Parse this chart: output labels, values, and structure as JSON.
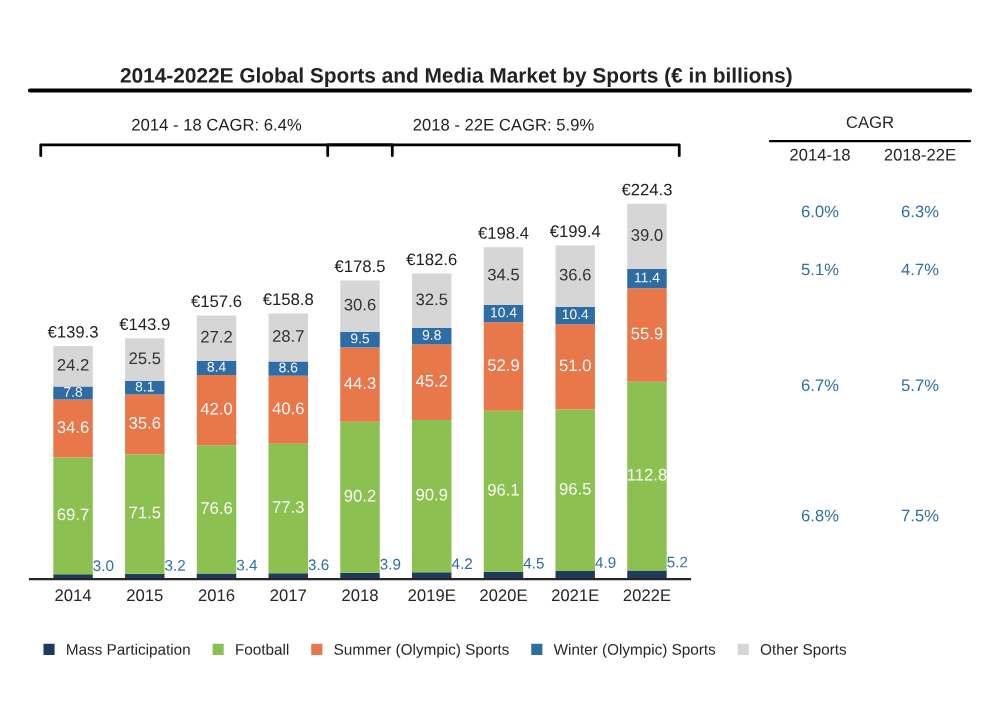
{
  "chart_data": {
    "type": "bar",
    "title": "2014-2022E Global Sports and Media Market by Sports (€ in billions)",
    "categories": [
      "2014",
      "2015",
      "2016",
      "2017",
      "2018",
      "2019E",
      "2020E",
      "2021E",
      "2022E"
    ],
    "stacked": true,
    "series": [
      {
        "name": "Mass Participation",
        "color": "#1f3b5c",
        "values": [
          3.0,
          3.2,
          3.4,
          3.6,
          3.9,
          4.2,
          4.5,
          4.9,
          5.2
        ],
        "value_labels": [
          "3.0",
          "3.2",
          "3.4",
          "3.6",
          "3.9",
          "4.2",
          "4.5",
          "4.9",
          "5.2"
        ]
      },
      {
        "name": "Football",
        "color": "#8cc152",
        "values": [
          69.7,
          71.5,
          76.6,
          77.3,
          90.2,
          90.9,
          96.1,
          96.5,
          112.8
        ],
        "value_labels": [
          "69.7",
          "71.5",
          "76.6",
          "77.3",
          "90.2",
          "90.9",
          "96.1",
          "96.5",
          "112.8"
        ]
      },
      {
        "name": "Summer (Olympic) Sports",
        "color": "#e8774a",
        "values": [
          34.6,
          35.6,
          42.0,
          40.6,
          44.3,
          45.2,
          52.9,
          51.0,
          55.9
        ],
        "value_labels": [
          "34.6",
          "35.6",
          "42.0",
          "40.6",
          "44.3",
          "45.2",
          "52.9",
          "51.0",
          "55.9"
        ]
      },
      {
        "name": "Winter (Olympic) Sports",
        "color": "#2e6da4",
        "values": [
          7.8,
          8.1,
          8.4,
          8.6,
          9.5,
          9.8,
          10.4,
          10.4,
          11.4
        ],
        "value_labels": [
          "7.8",
          "8.1",
          "8.4",
          "8.6",
          "9.5",
          "9.8",
          "10.4",
          "10.4",
          "11.4"
        ]
      },
      {
        "name": "Other Sports",
        "color": "#d6d6d6",
        "values": [
          24.2,
          25.5,
          27.2,
          28.7,
          30.6,
          32.5,
          34.5,
          36.6,
          39.0
        ],
        "value_labels": [
          "24.2",
          "25.5",
          "27.2",
          "28.7",
          "30.6",
          "32.5",
          "34.5",
          "36.6",
          "39.0"
        ]
      }
    ],
    "totals": [
      "€139.3",
      "€143.9",
      "€157.6",
      "€158.8",
      "€178.5",
      "€182.6",
      "€198.4",
      "€199.4",
      "€224.3"
    ],
    "annotations": [
      "2014 - 18 CAGR: 6.4%",
      "2018 - 22E CAGR: 5.9%",
      "CAGR",
      "2014-18",
      "2018-22E",
      "6.0%",
      "6.3%",
      "5.1%",
      "4.7%",
      "6.7%",
      "5.7%",
      "6.8%",
      "7.5%"
    ],
    "legend": "bottom",
    "tick_labels": "x"
  }
}
